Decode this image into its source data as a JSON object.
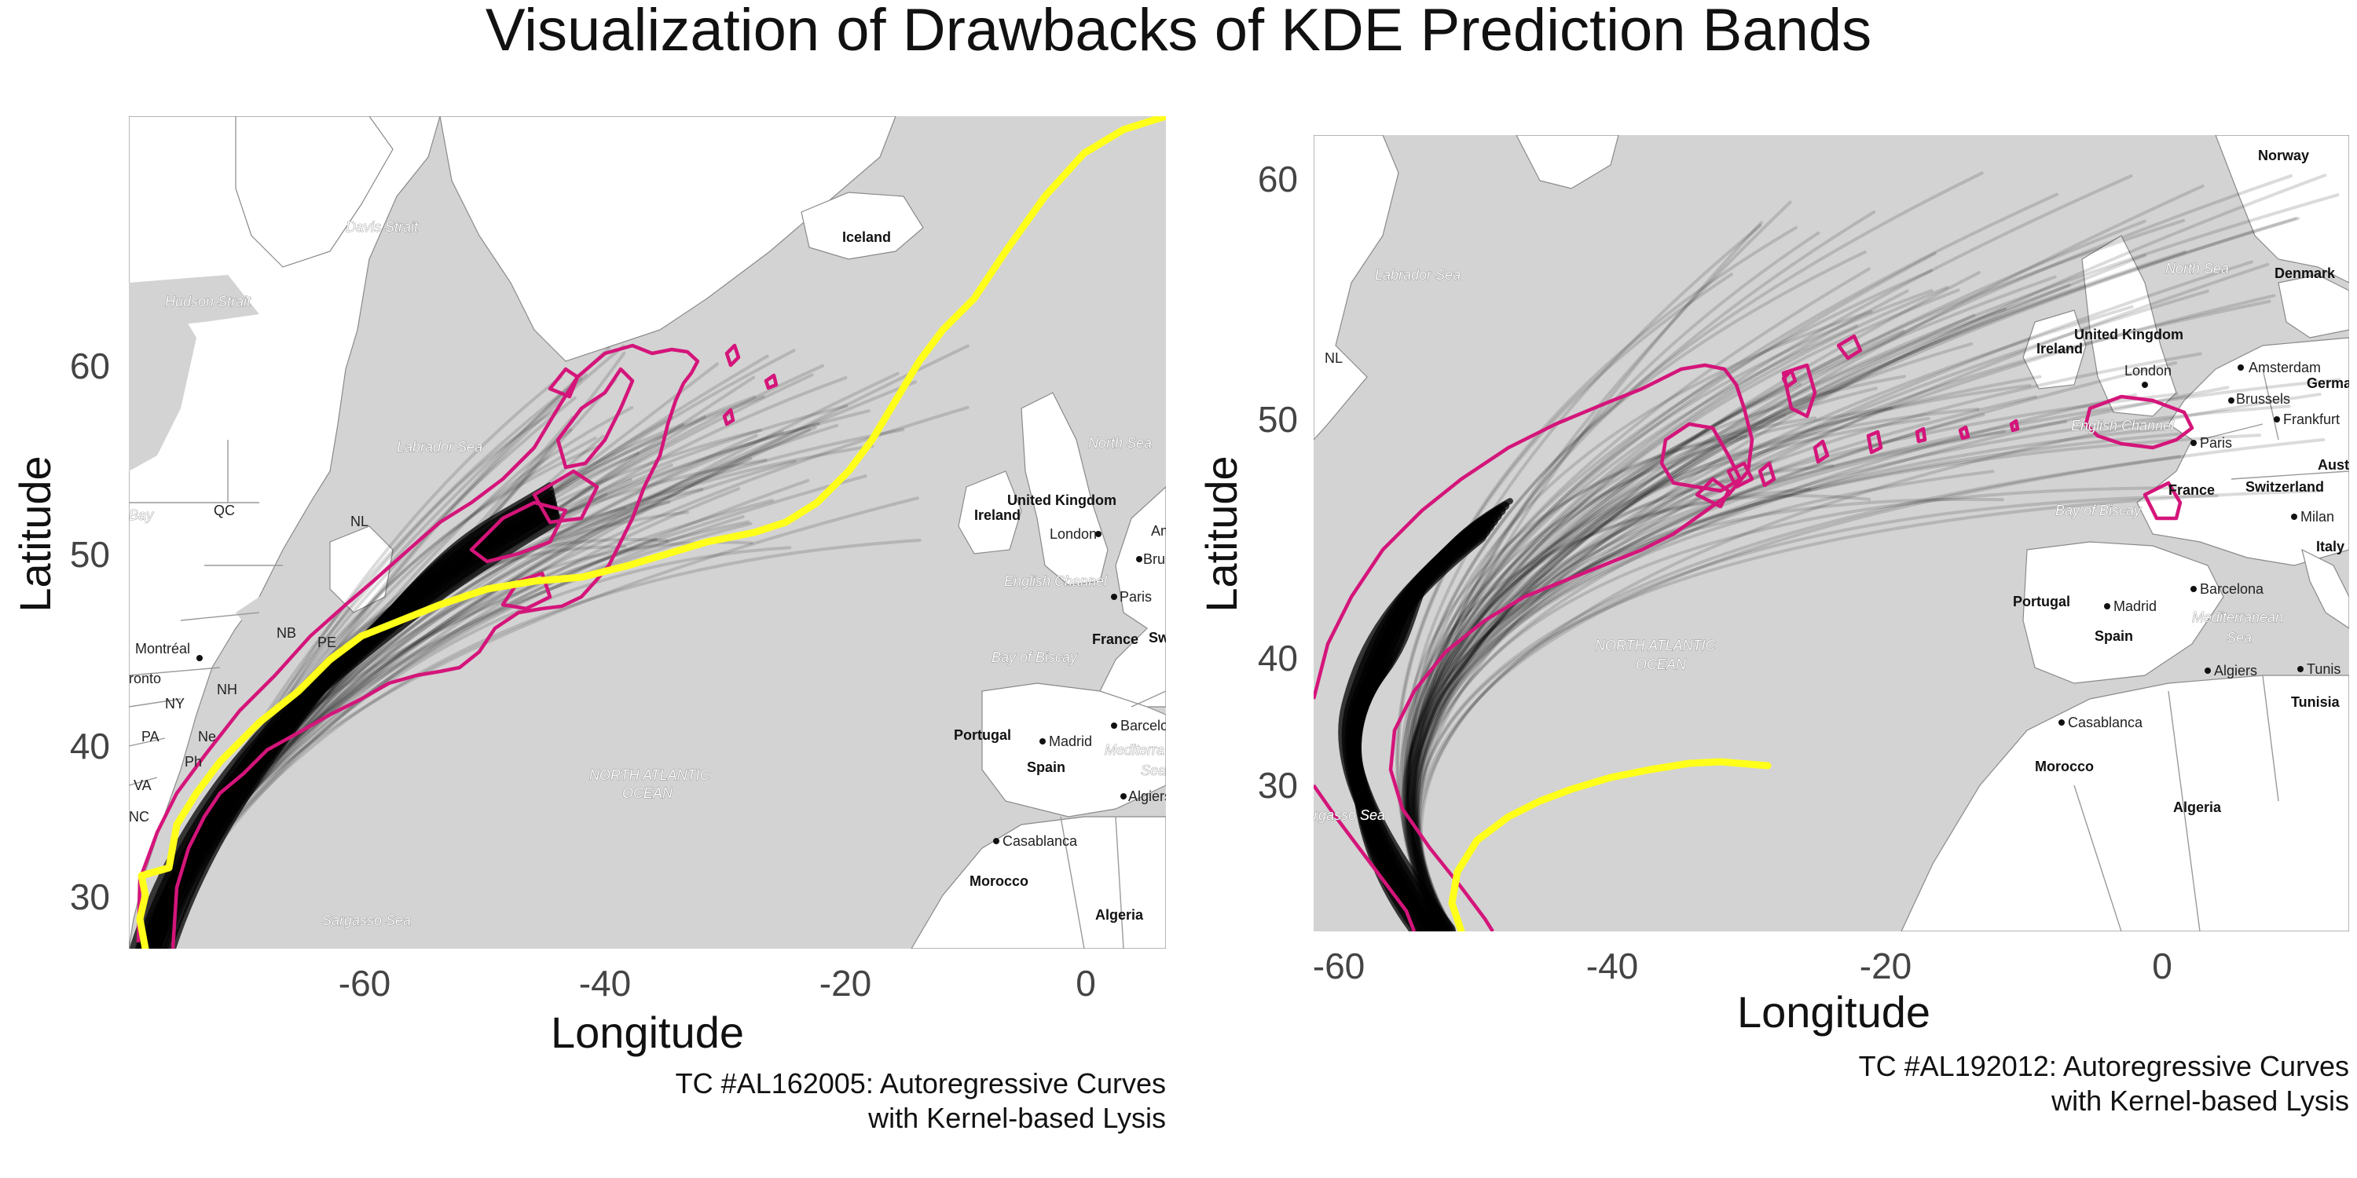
{
  "figure": {
    "title": "Visualization of Drawbacks of KDE Prediction Bands"
  },
  "colors": {
    "ocean": "#d3d3d3",
    "land": "#ffffff",
    "ensemble": "#000000",
    "kde_contour": "#d4157a",
    "observed_track": "#ffff1a"
  },
  "panels": [
    {
      "id": "left",
      "xlabel": "Longitude",
      "ylabel": "Latitude",
      "caption_line1": "TC #AL162005: Autoregressive Curves",
      "caption_line2": "with Kernel-based Lysis",
      "x_ticks": [
        "-60",
        "-40",
        "-20",
        "0"
      ],
      "y_ticks": [
        "30",
        "40",
        "50",
        "60"
      ],
      "map_labels": {
        "davis_strait": "Davis Strait",
        "hudson_strait": "Hudson Strait",
        "iceland": "Iceland",
        "labrador_sea": "Labrador Sea",
        "north_sea": "North Sea",
        "qc": "QC",
        "nl": "NL",
        "bay": "Bay",
        "ireland": "Ireland",
        "united_kingdom": "United Kingdom",
        "london": "London",
        "am": "Am",
        "bru": "Bru",
        "english_channel": "English Channel",
        "paris": "Paris",
        "montreal": "Montréal",
        "nb": "NB",
        "pe": "PE",
        "ronto": "ronto",
        "nh": "NH",
        "ny": "NY",
        "pa": "PA",
        "ne": "Ne",
        "ph": "Ph",
        "va": "VA",
        "nc": "NC",
        "bay_of_biscay": "Bay of Biscay",
        "france": "France",
        "sw": "Sw",
        "north_atlantic_1": "NORTH ATLANTIC",
        "north_atlantic_2": "OCEAN",
        "portugal": "Portugal",
        "madrid": "Madrid",
        "spain": "Spain",
        "barcelo": "Barcelo",
        "mediterra": "Mediterra",
        "sea": "Sea",
        "algiers": "Algiers",
        "casablanca": "Casablanca",
        "morocco": "Morocco",
        "algeria": "Algeria",
        "sargasso_sea": "Sargasso Sea"
      }
    },
    {
      "id": "right",
      "xlabel": "Longitude",
      "ylabel": "Latitude",
      "caption_line1": "TC #AL192012: Autoregressive Curves",
      "caption_line2": "with Kernel-based Lysis",
      "x_ticks": [
        "-60",
        "-40",
        "-20",
        "0"
      ],
      "y_ticks": [
        "30",
        "40",
        "50",
        "60"
      ],
      "map_labels": {
        "norway": "Norway",
        "labrador_sea": "Labrador Sea",
        "north_sea": "North Sea",
        "denmark": "Denmark",
        "nl": "NL",
        "united_kingdom": "United Kingdom",
        "ireland": "Ireland",
        "london": "London",
        "amsterdam": "Amsterdam",
        "germa": "Germa",
        "brussels": "Brussels",
        "frankfurt": "Frankfurt",
        "english_channel": "English Channel",
        "paris": "Paris",
        "aust": "Aust",
        "france": "France",
        "switzerland": "Switzerland",
        "bay_of_biscay": "Bay of Biscay",
        "milan": "Milan",
        "italy": "Italy",
        "portugal": "Portugal",
        "madrid": "Madrid",
        "barcelona": "Barcelona",
        "mediterranean": "Mediterranean",
        "sea": "Sea",
        "spain": "Spain",
        "algiers": "Algiers",
        "tunis": "Tunis",
        "tunisia": "Tunisia",
        "north_atlantic_1": "NORTH ATLANTIC",
        "north_atlantic_2": "OCEAN",
        "casablanca": "Casablanca",
        "morocco": "Morocco",
        "algeria": "Algeria",
        "sargasso": "rgasso Sea"
      }
    }
  ]
}
